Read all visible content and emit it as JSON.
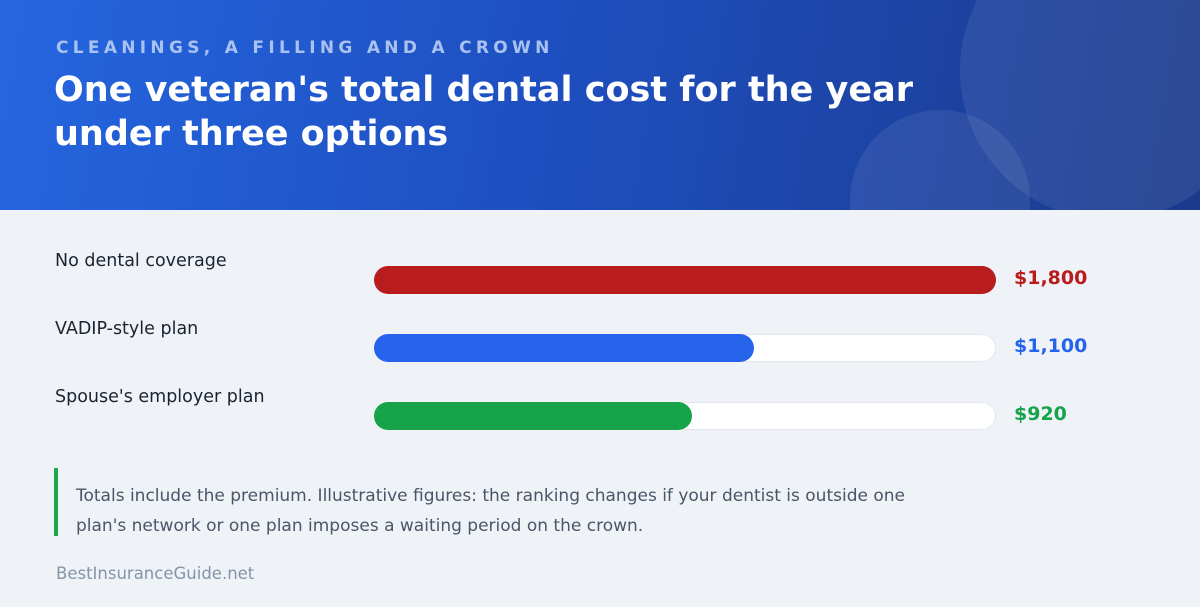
{
  "header": {
    "kicker": "CLEANINGS, A FILLING AND A CROWN",
    "title": "One veteran's total dental cost for the year under three options"
  },
  "chart_data": {
    "type": "bar",
    "orientation": "horizontal",
    "title": "One veteran's total dental cost for the year under three options",
    "subtitle": "CLEANINGS, A FILLING AND A CROWN",
    "categories": [
      "No dental coverage",
      "VADIP-style plan",
      "Spouse's employer plan"
    ],
    "values": [
      1800,
      1100,
      920
    ],
    "value_labels": [
      "$1,800",
      "$1,100",
      "$920"
    ],
    "colors": [
      "#b91c1c",
      "#2563eb",
      "#16a34a"
    ],
    "xlim": [
      0,
      1800
    ],
    "grid": false,
    "legend": "none"
  },
  "note": "Totals include the premium. Illustrative figures: the ranking changes if your dentist is outside one plan's network or one plan imposes a waiting period on the crown.",
  "source": "BestInsuranceGuide.net"
}
